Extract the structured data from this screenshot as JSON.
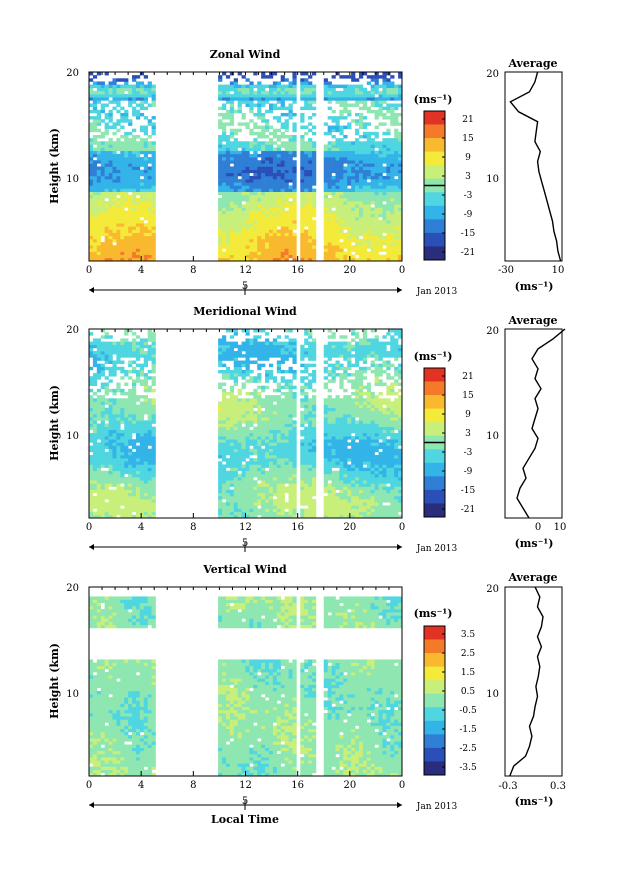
{
  "x_axis_label": "Local Time",
  "panels": [
    {
      "title": "Zonal Wind",
      "ylabel": "Height (km)",
      "colorbar": {
        "unit": "(ms⁻¹)",
        "ticks": [
          "21",
          "15",
          "9",
          "3",
          "-3",
          "-9",
          "-15",
          "-21"
        ],
        "zero_line": true
      },
      "average": {
        "title": "Average",
        "unit": "(ms⁻¹)",
        "xticks": [
          "-30",
          "10"
        ]
      }
    },
    {
      "title": "Meridional Wind",
      "ylabel": "Height (km)",
      "colorbar": {
        "unit": "(ms⁻¹)",
        "ticks": [
          "21",
          "15",
          "9",
          "3",
          "-3",
          "-9",
          "-15",
          "-21"
        ],
        "zero_line": true
      },
      "average": {
        "title": "Average",
        "unit": "(ms⁻¹)",
        "xticks": [
          "0",
          "10"
        ]
      }
    },
    {
      "title": "Vertical Wind",
      "ylabel": "Height (km)",
      "colorbar": {
        "unit": "(ms⁻¹)",
        "ticks": [
          "3.5",
          "2.5",
          "1.5",
          "0.5",
          "-0.5",
          "-1.5",
          "-2.5",
          "-3.5"
        ],
        "zero_line": false
      },
      "average": {
        "title": "Average",
        "unit": "(ms⁻¹)",
        "xticks": [
          "-0.3",
          "0.3"
        ]
      }
    }
  ],
  "chart_data": {
    "type": "heatmap",
    "x": {
      "ticks": [
        "0",
        "4",
        "8",
        "12",
        "16",
        "20",
        "0"
      ],
      "range_hours": [
        0,
        24
      ]
    },
    "y": {
      "ticks": [
        "10",
        "20"
      ],
      "range_km": [
        1,
        20
      ]
    },
    "date_axis": {
      "day_label": "5",
      "month_label": "Jan 2013"
    },
    "data_gaps_hours": [
      [
        5,
        10
      ],
      [
        15.9,
        16.3
      ],
      [
        17.4,
        17.9
      ]
    ],
    "colormap": [
      "#2a2d7c",
      "#2b4fb8",
      "#2f7fd6",
      "#33b4e8",
      "#4fd6e0",
      "#8ee6b0",
      "#c8ef7a",
      "#f4ea3a",
      "#f9b92e",
      "#f47a2a",
      "#e23224"
    ],
    "panels": [
      {
        "quantity": "Zonal Wind",
        "vmin": -24,
        "vmax": 24
      },
      {
        "quantity": "Meridional Wind",
        "vmin": -24,
        "vmax": 24
      },
      {
        "quantity": "Vertical Wind",
        "vmin": -4,
        "vmax": 4
      }
    ],
    "average_profiles": [
      {
        "xlim": [
          -30,
          12
        ],
        "height_km": [
          1,
          2,
          3,
          4,
          5,
          6,
          7,
          8,
          9,
          10,
          11,
          12,
          13,
          14,
          15,
          16,
          17,
          18,
          19,
          20
        ],
        "values": [
          11,
          9,
          8,
          6,
          5,
          3,
          1,
          -1,
          -3,
          -5,
          -6,
          -4,
          -8,
          -7,
          -6,
          -20,
          -26,
          -12,
          -8,
          -6
        ]
      },
      {
        "xlim": [
          -8,
          11
        ],
        "height_km": [
          1,
          2,
          3,
          4,
          5,
          6,
          7,
          8,
          9,
          10,
          11,
          12,
          13,
          14,
          15,
          16,
          17,
          18,
          19,
          20
        ],
        "values": [
          0,
          -2,
          -4,
          -3,
          -1,
          -2,
          0,
          2,
          3,
          1,
          2,
          3,
          2,
          4,
          2,
          3,
          1,
          3,
          8,
          12
        ]
      },
      {
        "xlim": [
          -0.36,
          0.36
        ],
        "height_km": [
          1,
          2,
          3,
          4,
          5,
          6,
          7,
          8,
          9,
          10,
          11,
          12,
          13,
          14,
          15,
          16,
          17,
          18,
          19,
          20
        ],
        "values": [
          -0.3,
          -0.25,
          -0.1,
          -0.05,
          -0.02,
          -0.05,
          0,
          0.02,
          0.05,
          0.03,
          0.06,
          0.08,
          0.05,
          0.1,
          0.05,
          0.1,
          0.12,
          0.05,
          0.08,
          0.02
        ]
      }
    ]
  }
}
